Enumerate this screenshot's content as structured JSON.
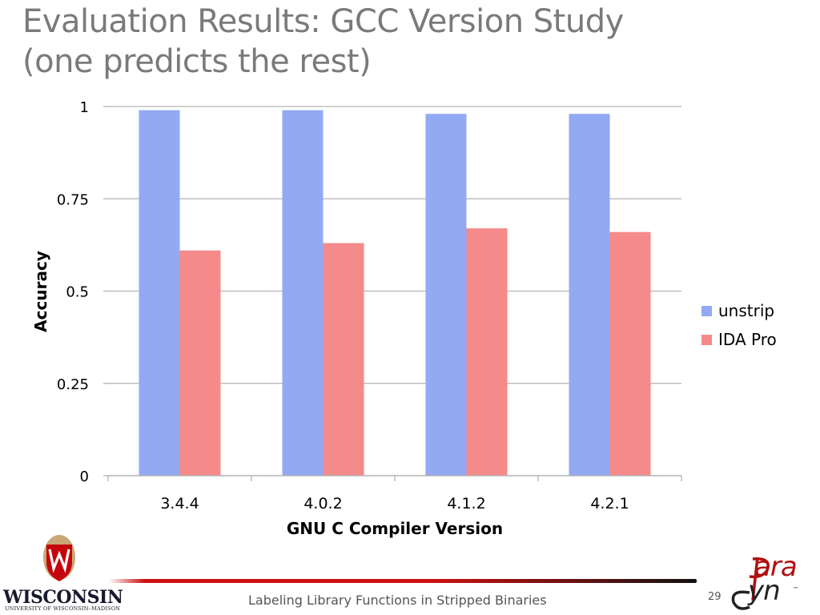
{
  "slide": {
    "title_line1": "Evaluation Results: GCC Version Study",
    "title_line2": "(one predicts the rest)",
    "footer_text": "Labeling Library Functions in Stripped Binaries",
    "page_number": "29"
  },
  "logos": {
    "left_name": "WISCONSIN",
    "left_sub": "UNIVERSITY OF WISCONSIN–MADISON",
    "right_part1": "ara",
    "right_part2": "yn",
    "right_tm": "™"
  },
  "colors": {
    "unstrip": "#93a9f4",
    "ida": "#f58a8a",
    "grid": "#b3b3b3",
    "accent": "#cc1111"
  },
  "chart_data": {
    "type": "bar",
    "xlabel": "GNU C Compiler Version",
    "ylabel": "Accuracy",
    "categories": [
      "3.4.4",
      "4.0.2",
      "4.1.2",
      "4.2.1"
    ],
    "ylim": [
      0,
      1
    ],
    "yticks": [
      0,
      0.25,
      0.5,
      0.75,
      1
    ],
    "ytick_labels": [
      "0",
      "0.25",
      "0.5",
      "0.75",
      "1"
    ],
    "series": [
      {
        "name": "unstrip",
        "values": [
          0.99,
          0.99,
          0.98,
          0.98
        ]
      },
      {
        "name": "IDA Pro",
        "values": [
          0.61,
          0.63,
          0.67,
          0.66
        ]
      }
    ],
    "grid": true,
    "legend_position": "right"
  }
}
